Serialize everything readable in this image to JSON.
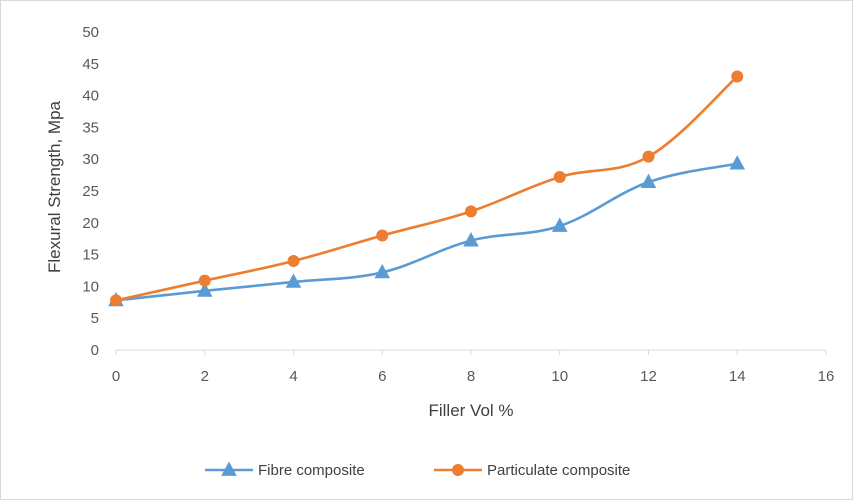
{
  "chart_data": {
    "type": "line",
    "title": "",
    "xlabel": "Filler Vol %",
    "ylabel": "Flexural Strength, Mpa",
    "xlim": [
      0,
      16
    ],
    "ylim": [
      0,
      50
    ],
    "xticks": [
      0,
      2,
      4,
      6,
      8,
      10,
      12,
      14,
      16
    ],
    "yticks": [
      0,
      5,
      10,
      15,
      20,
      25,
      30,
      35,
      40,
      45,
      50
    ],
    "grid": false,
    "legend_position": "bottom",
    "x": [
      0,
      2,
      4,
      6,
      8,
      10,
      12,
      14
    ],
    "series": [
      {
        "name": "Fibre composite",
        "marker": "triangle",
        "color": "#5b9bd5",
        "values": [
          7.8,
          9.3,
          10.7,
          12.2,
          17.2,
          19.5,
          26.4,
          29.3
        ]
      },
      {
        "name": "Particulate composite",
        "marker": "circle",
        "color": "#ed7d31",
        "values": [
          7.8,
          10.9,
          14.0,
          18.0,
          21.8,
          27.2,
          30.4,
          43.0
        ]
      }
    ]
  }
}
